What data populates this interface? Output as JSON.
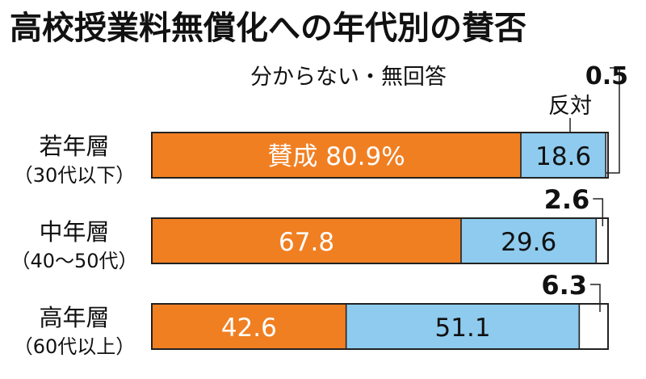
{
  "chart_data": {
    "type": "bar",
    "stacked": true,
    "orientation": "horizontal",
    "title": "高校授業料無償化への年代別の賛否",
    "categories": [
      {
        "name": "若年層",
        "sub": "（30代以下）"
      },
      {
        "name": "中年層",
        "sub": "（40〜50代）"
      },
      {
        "name": "高年層",
        "sub": "（60代以上）"
      }
    ],
    "series": [
      {
        "name": "賛成",
        "values": [
          80.9,
          67.8,
          42.6
        ],
        "color": "#f07f22"
      },
      {
        "name": "反対",
        "values": [
          18.6,
          29.6,
          51.1
        ],
        "color": "#8ecbee"
      },
      {
        "name": "分からない・無回答",
        "values": [
          0.5,
          2.6,
          6.3
        ],
        "color": "#ffffff"
      }
    ],
    "bar_labels": [
      [
        "賛成 80.9%",
        "18.6",
        "0.5"
      ],
      [
        "67.8",
        "29.6",
        "2.6"
      ],
      [
        "42.6",
        "51.1",
        "6.3"
      ]
    ],
    "xlim": [
      0,
      100
    ]
  }
}
